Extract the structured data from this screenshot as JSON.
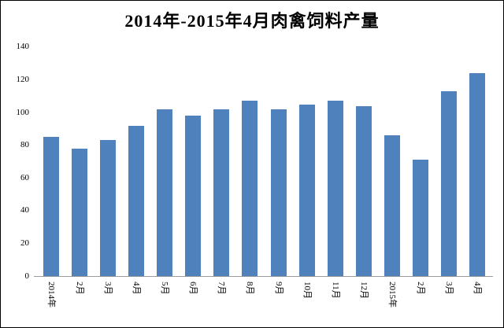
{
  "window": {
    "title": "2014年-2015年4月肉禽饲料产量"
  },
  "chart_data": {
    "type": "bar",
    "title": "2014年-2015年4月肉禽饲料产量",
    "categories": [
      "2014年",
      "2月",
      "3月",
      "4月",
      "5月",
      "6月",
      "7月",
      "8月",
      "9月",
      "10月",
      "11月",
      "12月",
      "2015年",
      "2月",
      "3月",
      "4月"
    ],
    "values": [
      85,
      78,
      83,
      92,
      102,
      98,
      102,
      107,
      102,
      105,
      107,
      104,
      86,
      71,
      113,
      124
    ],
    "xlabel": "",
    "ylabel": "",
    "ylim": [
      0,
      140
    ],
    "y_ticks": [
      0,
      20,
      40,
      60,
      80,
      100,
      120,
      140
    ],
    "grid": "off",
    "legend": "none",
    "x_label_rotation": 90,
    "bar_color": "#4F81BD",
    "axis_line_color": "#9B9B9B",
    "text_color": "#000000",
    "background_color": "#FFFFFF"
  }
}
